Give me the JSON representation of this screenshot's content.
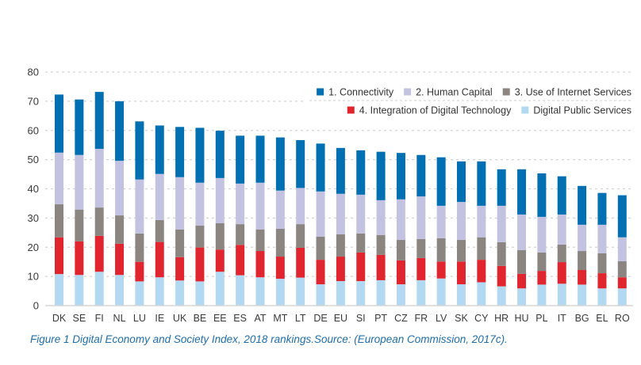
{
  "chart_data": {
    "type": "bar",
    "stacked": true,
    "title": "",
    "xlabel": "",
    "ylabel": "",
    "ylim": [
      0,
      80
    ],
    "yticks": [
      0,
      10,
      20,
      30,
      40,
      50,
      60,
      70,
      80
    ],
    "grid": true,
    "legend_position": "top-right",
    "categories": [
      "DK",
      "SE",
      "FI",
      "NL",
      "LU",
      "IE",
      "UK",
      "BE",
      "EE",
      "ES",
      "AT",
      "MT",
      "LT",
      "DE",
      "EU",
      "SI",
      "PT",
      "CZ",
      "FR",
      "LV",
      "SK",
      "CY",
      "HR",
      "HU",
      "PL",
      "IT",
      "BG",
      "EL",
      "RO"
    ],
    "series": [
      {
        "name": "Digital Public Services",
        "color": "#b3d9f2",
        "values": [
          10.8,
          10.5,
          11.6,
          10.5,
          8.3,
          9.7,
          8.6,
          8.3,
          11.6,
          10.4,
          9.7,
          9.2,
          9.6,
          7.3,
          8.4,
          8.4,
          8.7,
          7.3,
          8.7,
          9.3,
          7.3,
          8.0,
          6.6,
          5.9,
          7.2,
          7.5,
          7.2,
          5.9,
          5.9
        ]
      },
      {
        "name": "4. Integration of Digital Technology",
        "color": "#e1252f",
        "values": [
          12.6,
          11.5,
          12.3,
          10.7,
          6.7,
          12.1,
          8.0,
          11.6,
          7.6,
          10.4,
          9.0,
          7.6,
          10.2,
          8.4,
          8.4,
          9.8,
          8.7,
          8.2,
          7.6,
          5.8,
          7.8,
          7.7,
          7.0,
          5.0,
          4.7,
          7.4,
          5.0,
          5.2,
          3.8
        ]
      },
      {
        "name": "3. Use of Internet Services",
        "color": "#8a8580",
        "values": [
          11.3,
          10.9,
          9.7,
          9.7,
          9.7,
          7.5,
          9.5,
          7.5,
          9.0,
          7.1,
          7.4,
          9.5,
          8.1,
          7.9,
          7.6,
          6.5,
          6.8,
          7.0,
          6.5,
          8.0,
          7.4,
          7.7,
          8.1,
          8.1,
          6.3,
          6.0,
          6.5,
          6.8,
          5.5
        ]
      },
      {
        "name": "2. Human Capital",
        "color": "#c3c3e1",
        "values": [
          17.7,
          18.7,
          20.1,
          18.7,
          18.5,
          15.8,
          17.9,
          14.7,
          15.5,
          13.9,
          16.0,
          13.1,
          12.4,
          15.5,
          13.9,
          13.3,
          11.9,
          13.9,
          14.6,
          11.1,
          13.0,
          10.8,
          12.5,
          12.2,
          12.2,
          10.3,
          9.0,
          9.8,
          8.2
        ]
      },
      {
        "name": "1. Connectivity",
        "color": "#0070b2",
        "values": [
          19.9,
          19.0,
          19.5,
          20.4,
          19.9,
          16.6,
          17.2,
          18.8,
          16.2,
          16.4,
          16.1,
          18.2,
          16.4,
          16.4,
          15.7,
          15.2,
          16.6,
          15.9,
          14.2,
          16.6,
          13.9,
          15.2,
          12.5,
          15.5,
          14.9,
          13.1,
          13.3,
          10.9,
          14.4
        ]
      }
    ],
    "legend": {
      "row1": [
        "1. Connectivity",
        "2. Human Capital",
        "3. Use of Internet Services"
      ],
      "row2": [
        "4. Integration of Digital Technology",
        "Digital Public Services"
      ]
    }
  },
  "caption": "Figure 1 Digital Economy and Society Index, 2018 rankings.Source: (European Commission, 2017c)."
}
